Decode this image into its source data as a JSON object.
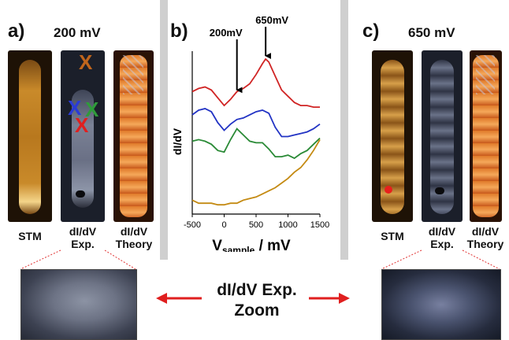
{
  "panels": {
    "a": {
      "label": "a)",
      "bias": "200 mV",
      "captions": {
        "stm": "STM",
        "exp_line1": "dI/dV",
        "exp_line2": "Exp.",
        "theory_line1": "dI/dV",
        "theory_line2": "Theory"
      },
      "marks": [
        {
          "symbol": "X",
          "color": "#c0651c"
        },
        {
          "symbol": "X",
          "color": "#2a3bd6"
        },
        {
          "symbol": "X",
          "color": "#2f9a3a"
        },
        {
          "symbol": "X",
          "color": "#e01f1f"
        }
      ]
    },
    "b": {
      "label": "b)"
    },
    "c": {
      "label": "c)",
      "bias": "650 mV",
      "captions": {
        "stm": "STM",
        "exp_line1": "dI/dV",
        "exp_line2": "Exp.",
        "theory_line1": "dI/dV",
        "theory_line2": "Theory"
      }
    }
  },
  "zoom": {
    "line1": "dI/dV Exp.",
    "line2": "Zoom",
    "arrow_color": "#e01f1f"
  },
  "chart_data": {
    "type": "line",
    "ylabel": "dI/dV",
    "xlabel_main": "V",
    "xlabel_sub": "sample",
    "xlabel_unit": " / mV",
    "xlim": [
      -500,
      1500
    ],
    "xticks": [
      -500,
      0,
      500,
      1000,
      1500
    ],
    "ylim": [
      0,
      100
    ],
    "annotations": [
      {
        "text": "200mV",
        "x": 200
      },
      {
        "text": "650mV",
        "x": 650
      }
    ],
    "series": [
      {
        "color": "#d02424",
        "x": [
          -500,
          -400,
          -300,
          -200,
          -100,
          0,
          100,
          200,
          300,
          400,
          500,
          600,
          650,
          700,
          800,
          900,
          1000,
          1100,
          1200,
          1300,
          1400,
          1500
        ],
        "y": [
          79,
          81,
          82,
          80,
          75,
          70,
          74,
          79,
          81,
          84,
          90,
          97,
          100,
          98,
          89,
          80,
          76,
          72,
          70,
          70,
          69,
          69
        ]
      },
      {
        "color": "#2233c4",
        "x": [
          -500,
          -400,
          -300,
          -200,
          -100,
          0,
          100,
          200,
          300,
          400,
          500,
          600,
          700,
          800,
          900,
          1000,
          1100,
          1200,
          1300,
          1400,
          1500
        ],
        "y": [
          64,
          67,
          68,
          66,
          59,
          54,
          58,
          61,
          62,
          64,
          66,
          67,
          65,
          56,
          50,
          50,
          51,
          52,
          53,
          55,
          58
        ]
      },
      {
        "color": "#2a8a36",
        "x": [
          -500,
          -400,
          -300,
          -200,
          -100,
          0,
          100,
          200,
          300,
          400,
          500,
          600,
          700,
          800,
          900,
          1000,
          1100,
          1200,
          1300,
          1400,
          1500
        ],
        "y": [
          47,
          48,
          47,
          45,
          41,
          40,
          48,
          55,
          51,
          47,
          46,
          46,
          42,
          37,
          37,
          38,
          36,
          39,
          41,
          45,
          49
        ]
      },
      {
        "color": "#c48a12",
        "x": [
          -500,
          -400,
          -300,
          -200,
          -100,
          0,
          100,
          200,
          300,
          400,
          500,
          600,
          700,
          800,
          900,
          1000,
          1100,
          1200,
          1300,
          1400,
          1500
        ],
        "y": [
          9,
          7,
          7,
          7,
          6,
          6,
          7,
          7,
          9,
          10,
          11,
          13,
          15,
          17,
          20,
          23,
          27,
          30,
          35,
          41,
          48
        ]
      }
    ]
  }
}
